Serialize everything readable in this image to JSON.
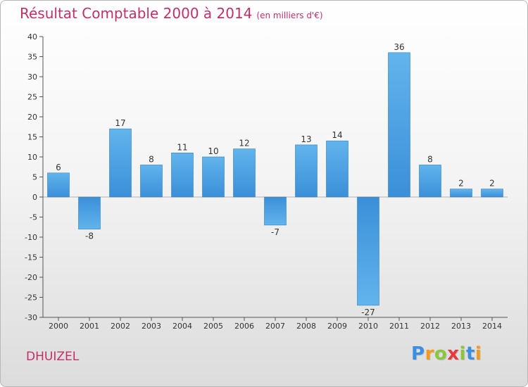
{
  "chart_data": {
    "type": "bar",
    "title": "Résultat Comptable 2000 à 2014",
    "subtitle": "(en milliers d'€)",
    "categories": [
      "2000",
      "2001",
      "2002",
      "2003",
      "2004",
      "2005",
      "2006",
      "2007",
      "2008",
      "2009",
      "2010",
      "2011",
      "2012",
      "2013",
      "2014"
    ],
    "values": [
      6,
      -8,
      17,
      8,
      11,
      10,
      12,
      -7,
      13,
      14,
      -27,
      36,
      8,
      2,
      2
    ],
    "ylim": [
      -30,
      40
    ],
    "yticks": [
      40,
      35,
      30,
      25,
      20,
      15,
      10,
      5,
      0,
      -5,
      -10,
      -15,
      -20,
      -25,
      -30
    ],
    "xlabel": "",
    "ylabel": "",
    "grid": false,
    "legend": "none",
    "bar_color": "#3a8fd8",
    "bar_color_light": "#62b4ec"
  },
  "commune": "DHUIZEL",
  "logo": {
    "letters": [
      "P",
      "r",
      "o",
      "x",
      "i",
      "t",
      "i"
    ],
    "colors": [
      "#3c8fe0",
      "#f39a1e",
      "#8cc63f",
      "#e63a3a",
      "#8cc63f",
      "#3c8fe0",
      "#f39a1e"
    ]
  }
}
